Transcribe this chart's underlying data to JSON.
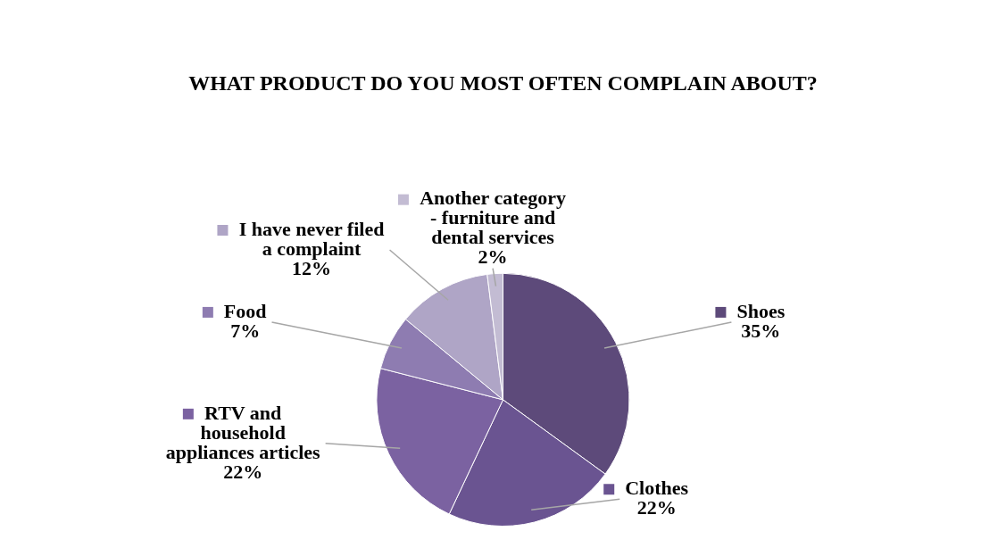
{
  "chart_data": {
    "type": "pie",
    "title": "WHAT PRODUCT DO YOU MOST OFTEN COMPLAIN ABOUT?",
    "categories": [
      "Shoes",
      "Clothes",
      "RTV and household appliances articles",
      "Food",
      "I have never filed a complaint",
      "Another category - furniture and dental services"
    ],
    "values": [
      35,
      22,
      22,
      7,
      12,
      2
    ],
    "colors": [
      "#5d4a7a",
      "#6a5491",
      "#7b62a1",
      "#8e7cb1",
      "#afa5c6",
      "#c3bcd3"
    ],
    "value_labels": [
      "35%",
      "22%",
      "22%",
      "7%",
      "12%",
      "2%"
    ],
    "legend": "top left"
  }
}
